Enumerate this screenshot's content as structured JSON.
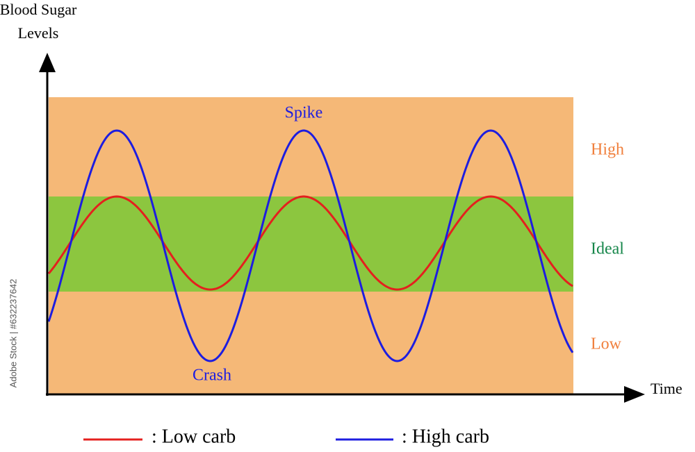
{
  "y_axis_label": [
    "Blood Sugar",
    "Levels"
  ],
  "x_axis_label": "Time",
  "zones": {
    "high": "High",
    "ideal": "Ideal",
    "low": "Low"
  },
  "annotations": {
    "spike": "Spike",
    "crash": "Crash"
  },
  "legend": [
    {
      "label": ":  Low carb"
    },
    {
      "label": ":  High carb"
    }
  ],
  "watermark": "Adobe Stock | #632237642"
}
